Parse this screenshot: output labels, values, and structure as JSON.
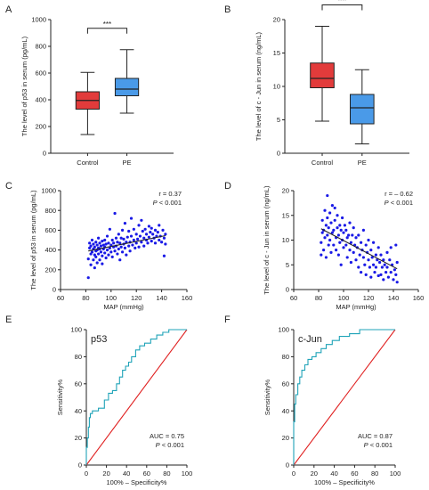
{
  "colors": {
    "control": "#e23b3b",
    "pe": "#4a9ae8",
    "scatter": "#1a1ae6",
    "roc_curve": "#1fa3b8",
    "reference": "#e02020"
  },
  "chart_data": [
    {
      "panel": "A",
      "type": "box",
      "ylabel": "The level of p53 in serum (pg/mL)",
      "categories": [
        "Control",
        "PE"
      ],
      "yticks": [
        0,
        200,
        400,
        600,
        800,
        1000
      ],
      "ylim": [
        0,
        1000
      ],
      "boxes": [
        {
          "name": "Control",
          "min": 140,
          "q1": 330,
          "median": 395,
          "q3": 460,
          "max": 605
        },
        {
          "name": "PE",
          "min": 300,
          "q1": 430,
          "median": 480,
          "q3": 560,
          "max": 775
        }
      ],
      "significance": "***"
    },
    {
      "panel": "B",
      "type": "box",
      "ylabel": "The level of c - Jun in serum (ng/mL)",
      "categories": [
        "Control",
        "PE"
      ],
      "yticks": [
        0,
        5,
        10,
        15,
        20
      ],
      "ylim": [
        0,
        20
      ],
      "boxes": [
        {
          "name": "Control",
          "min": 4.8,
          "q1": 9.8,
          "median": 11.2,
          "q3": 13.5,
          "max": 19.0
        },
        {
          "name": "PE",
          "min": 1.4,
          "q1": 4.4,
          "median": 6.8,
          "q3": 8.8,
          "max": 12.5
        }
      ],
      "significance": "***"
    },
    {
      "panel": "C",
      "type": "scatter",
      "xlabel": "MAP (mmHg)",
      "ylabel": "The level of p53 in serum (pg/mL)",
      "xticks": [
        60,
        80,
        100,
        120,
        140,
        160
      ],
      "yticks": [
        0,
        200,
        400,
        600,
        800,
        1000
      ],
      "xlim": [
        60,
        160
      ],
      "ylim": [
        0,
        1000
      ],
      "annotation_r": "r = 0.37",
      "annotation_p_symbol": "P",
      "annotation_p_value": "< 0.001",
      "fit_line": {
        "x": [
          82,
          143
        ],
        "y": [
          390,
          545
        ]
      },
      "points": [
        [
          82,
          120
        ],
        [
          82,
          310
        ],
        [
          83,
          420
        ],
        [
          83,
          470
        ],
        [
          84,
          250
        ],
        [
          84,
          360
        ],
        [
          84,
          440
        ],
        [
          85,
          380
        ],
        [
          85,
          500
        ],
        [
          86,
          300
        ],
        [
          86,
          410
        ],
        [
          86,
          460
        ],
        [
          87,
          220
        ],
        [
          87,
          350
        ],
        [
          87,
          430
        ],
        [
          88,
          480
        ],
        [
          88,
          390
        ],
        [
          88,
          330
        ],
        [
          89,
          450
        ],
        [
          89,
          400
        ],
        [
          89,
          270
        ],
        [
          90,
          520
        ],
        [
          90,
          420
        ],
        [
          90,
          360
        ],
        [
          91,
          300
        ],
        [
          91,
          470
        ],
        [
          91,
          410
        ],
        [
          92,
          380
        ],
        [
          92,
          440
        ],
        [
          93,
          340
        ],
        [
          93,
          490
        ],
        [
          93,
          260
        ],
        [
          94,
          410
        ],
        [
          94,
          450
        ],
        [
          95,
          370
        ],
        [
          95,
          500
        ],
        [
          95,
          430
        ],
        [
          96,
          320
        ],
        [
          96,
          460
        ],
        [
          97,
          400
        ],
        [
          97,
          540
        ],
        [
          98,
          350
        ],
        [
          98,
          470
        ],
        [
          99,
          420
        ],
        [
          99,
          610
        ],
        [
          100,
          380
        ],
        [
          100,
          450
        ],
        [
          101,
          500
        ],
        [
          101,
          330
        ],
        [
          102,
          430
        ],
        [
          102,
          470
        ],
        [
          103,
          770
        ],
        [
          103,
          390
        ],
        [
          104,
          520
        ],
        [
          104,
          440
        ],
        [
          105,
          360
        ],
        [
          105,
          480
        ],
        [
          106,
          560
        ],
        [
          106,
          410
        ],
        [
          107,
          470
        ],
        [
          107,
          300
        ],
        [
          108,
          520
        ],
        [
          108,
          430
        ],
        [
          109,
          600
        ],
        [
          109,
          380
        ],
        [
          110,
          460
        ],
        [
          110,
          510
        ],
        [
          111,
          420
        ],
        [
          111,
          670
        ],
        [
          112,
          480
        ],
        [
          112,
          350
        ],
        [
          113,
          530
        ],
        [
          114,
          440
        ],
        [
          114,
          590
        ],
        [
          115,
          480
        ],
        [
          115,
          390
        ],
        [
          116,
          720
        ],
        [
          116,
          540
        ],
        [
          117,
          450
        ],
        [
          118,
          500
        ],
        [
          118,
          610
        ],
        [
          119,
          420
        ],
        [
          120,
          560
        ],
        [
          120,
          470
        ],
        [
          121,
          510
        ],
        [
          122,
          650
        ],
        [
          122,
          430
        ],
        [
          123,
          540
        ],
        [
          124,
          480
        ],
        [
          124,
          700
        ],
        [
          125,
          590
        ],
        [
          126,
          520
        ],
        [
          126,
          440
        ],
        [
          127,
          610
        ],
        [
          128,
          500
        ],
        [
          128,
          560
        ],
        [
          129,
          470
        ],
        [
          130,
          640
        ],
        [
          130,
          530
        ],
        [
          131,
          580
        ],
        [
          132,
          490
        ],
        [
          132,
          620
        ],
        [
          133,
          560
        ],
        [
          134,
          520
        ],
        [
          135,
          600
        ],
        [
          135,
          470
        ],
        [
          136,
          540
        ],
        [
          137,
          580
        ],
        [
          138,
          500
        ],
        [
          138,
          650
        ],
        [
          139,
          540
        ],
        [
          140,
          480
        ],
        [
          141,
          600
        ],
        [
          142,
          520
        ],
        [
          143,
          460
        ],
        [
          143,
          560
        ],
        [
          142,
          340
        ]
      ]
    },
    {
      "panel": "D",
      "type": "scatter",
      "xlabel": "MAP (mmHg)",
      "ylabel": "The level of c - Jun in serum (ng/mL)",
      "xticks": [
        60,
        80,
        100,
        120,
        140,
        160
      ],
      "yticks": [
        0,
        5,
        10,
        15,
        20
      ],
      "xlim": [
        60,
        160
      ],
      "ylim": [
        0,
        20
      ],
      "annotation_r": "r = – 0.62",
      "annotation_p_symbol": "P",
      "annotation_p_value": "< 0.001",
      "fit_line": {
        "x": [
          82,
          143
        ],
        "y": [
          12.3,
          4.2
        ]
      },
      "points": [
        [
          82,
          7.0
        ],
        [
          82,
          9.5
        ],
        [
          83,
          11.5
        ],
        [
          83,
          14.0
        ],
        [
          84,
          8.0
        ],
        [
          84,
          12.0
        ],
        [
          85,
          16.0
        ],
        [
          85,
          10.5
        ],
        [
          86,
          13.0
        ],
        [
          86,
          6.5
        ],
        [
          87,
          19.0
        ],
        [
          87,
          11.0
        ],
        [
          87,
          14.5
        ],
        [
          88,
          9.0
        ],
        [
          88,
          12.5
        ],
        [
          89,
          15.5
        ],
        [
          89,
          10.0
        ],
        [
          90,
          13.5
        ],
        [
          90,
          7.5
        ],
        [
          91,
          17.0
        ],
        [
          91,
          11.5
        ],
        [
          92,
          12.0
        ],
        [
          92,
          9.0
        ],
        [
          93,
          14.0
        ],
        [
          93,
          16.5
        ],
        [
          94,
          10.5
        ],
        [
          94,
          8.0
        ],
        [
          95,
          12.5
        ],
        [
          95,
          15.0
        ],
        [
          96,
          11.0
        ],
        [
          96,
          7.0
        ],
        [
          97,
          13.0
        ],
        [
          97,
          9.5
        ],
        [
          98,
          12.0
        ],
        [
          98,
          5.0
        ],
        [
          99,
          10.0
        ],
        [
          99,
          14.5
        ],
        [
          100,
          11.5
        ],
        [
          100,
          8.5
        ],
        [
          101,
          13.0
        ],
        [
          102,
          9.0
        ],
        [
          102,
          12.0
        ],
        [
          103,
          10.5
        ],
        [
          103,
          6.5
        ],
        [
          104,
          11.0
        ],
        [
          105,
          8.0
        ],
        [
          105,
          13.5
        ],
        [
          106,
          9.5
        ],
        [
          106,
          5.5
        ],
        [
          107,
          11.0
        ],
        [
          108,
          7.5
        ],
        [
          108,
          12.5
        ],
        [
          109,
          9.0
        ],
        [
          110,
          6.0
        ],
        [
          110,
          10.5
        ],
        [
          111,
          8.5
        ],
        [
          112,
          4.5
        ],
        [
          112,
          11.0
        ],
        [
          113,
          7.0
        ],
        [
          114,
          9.5
        ],
        [
          114,
          3.5
        ],
        [
          115,
          8.0
        ],
        [
          116,
          6.5
        ],
        [
          116,
          12.0
        ],
        [
          117,
          5.0
        ],
        [
          118,
          9.0
        ],
        [
          118,
          3.0
        ],
        [
          119,
          7.5
        ],
        [
          120,
          6.0
        ],
        [
          120,
          10.0
        ],
        [
          121,
          4.5
        ],
        [
          122,
          8.0
        ],
        [
          122,
          2.5
        ],
        [
          123,
          6.5
        ],
        [
          124,
          5.0
        ],
        [
          124,
          9.5
        ],
        [
          125,
          3.5
        ],
        [
          126,
          7.0
        ],
        [
          126,
          4.5
        ],
        [
          127,
          6.0
        ],
        [
          128,
          2.8
        ],
        [
          128,
          8.5
        ],
        [
          129,
          5.5
        ],
        [
          130,
          3.0
        ],
        [
          130,
          7.0
        ],
        [
          131,
          4.5
        ],
        [
          132,
          6.0
        ],
        [
          132,
          2.0
        ],
        [
          133,
          5.0
        ],
        [
          134,
          3.5
        ],
        [
          135,
          7.5
        ],
        [
          135,
          4.5
        ],
        [
          136,
          2.5
        ],
        [
          137,
          6.0
        ],
        [
          138,
          3.5
        ],
        [
          138,
          8.5
        ],
        [
          139,
          5.0
        ],
        [
          140,
          2.0
        ],
        [
          141,
          4.0
        ],
        [
          142,
          9.0
        ],
        [
          142,
          3.0
        ],
        [
          143,
          1.5
        ],
        [
          143,
          5.5
        ]
      ]
    },
    {
      "panel": "E",
      "type": "roc",
      "name": "p53",
      "xlabel": "100% – Specificity%",
      "ylabel": "Sensitivity%",
      "xticks": [
        0,
        20,
        40,
        60,
        80,
        100
      ],
      "yticks": [
        0,
        20,
        40,
        60,
        80,
        100
      ],
      "xlim": [
        0,
        100
      ],
      "ylim": [
        0,
        100
      ],
      "annotation_auc": "AUC = 0.75",
      "annotation_p_symbol": "P",
      "annotation_p_value": "< 0.001",
      "curve": [
        [
          0,
          0
        ],
        [
          0,
          13
        ],
        [
          1,
          13
        ],
        [
          1,
          20
        ],
        [
          2,
          20
        ],
        [
          2,
          28
        ],
        [
          3,
          28
        ],
        [
          3,
          35
        ],
        [
          4,
          35
        ],
        [
          4,
          38
        ],
        [
          6,
          38
        ],
        [
          6,
          40
        ],
        [
          12,
          40
        ],
        [
          12,
          42
        ],
        [
          18,
          42
        ],
        [
          18,
          48
        ],
        [
          22,
          48
        ],
        [
          22,
          53
        ],
        [
          26,
          53
        ],
        [
          26,
          55
        ],
        [
          30,
          55
        ],
        [
          30,
          60
        ],
        [
          33,
          60
        ],
        [
          33,
          65
        ],
        [
          36,
          65
        ],
        [
          36,
          70
        ],
        [
          39,
          70
        ],
        [
          39,
          73
        ],
        [
          42,
          73
        ],
        [
          42,
          76
        ],
        [
          45,
          76
        ],
        [
          45,
          80
        ],
        [
          49,
          80
        ],
        [
          49,
          85
        ],
        [
          53,
          85
        ],
        [
          53,
          88
        ],
        [
          58,
          88
        ],
        [
          58,
          90
        ],
        [
          64,
          90
        ],
        [
          64,
          93
        ],
        [
          70,
          93
        ],
        [
          70,
          96
        ],
        [
          76,
          96
        ],
        [
          76,
          98
        ],
        [
          82,
          98
        ],
        [
          82,
          100
        ],
        [
          100,
          100
        ]
      ],
      "reference": [
        [
          0,
          0
        ],
        [
          100,
          100
        ]
      ]
    },
    {
      "panel": "F",
      "type": "roc",
      "name": "c-Jun",
      "xlabel": "100% – Specificity%",
      "ylabel": "Sensitivity%",
      "xticks": [
        0,
        20,
        40,
        60,
        80,
        100
      ],
      "yticks": [
        0,
        20,
        40,
        60,
        80,
        100
      ],
      "xlim": [
        0,
        100
      ],
      "ylim": [
        0,
        100
      ],
      "annotation_auc": "AUC = 0.87",
      "annotation_p_symbol": "P",
      "annotation_p_value": "< 0.001",
      "curve": [
        [
          0,
          0
        ],
        [
          0,
          32
        ],
        [
          1,
          32
        ],
        [
          1,
          45
        ],
        [
          2,
          45
        ],
        [
          2,
          52
        ],
        [
          4,
          52
        ],
        [
          4,
          60
        ],
        [
          6,
          60
        ],
        [
          6,
          65
        ],
        [
          8,
          65
        ],
        [
          8,
          70
        ],
        [
          11,
          70
        ],
        [
          11,
          74
        ],
        [
          14,
          74
        ],
        [
          14,
          78
        ],
        [
          18,
          78
        ],
        [
          18,
          80
        ],
        [
          22,
          80
        ],
        [
          22,
          83
        ],
        [
          27,
          83
        ],
        [
          27,
          86
        ],
        [
          32,
          86
        ],
        [
          32,
          89
        ],
        [
          38,
          89
        ],
        [
          38,
          92
        ],
        [
          45,
          92
        ],
        [
          45,
          95
        ],
        [
          55,
          95
        ],
        [
          55,
          97
        ],
        [
          65,
          97
        ],
        [
          65,
          100
        ],
        [
          100,
          100
        ]
      ],
      "reference": [
        [
          0,
          0
        ],
        [
          100,
          100
        ]
      ]
    }
  ]
}
